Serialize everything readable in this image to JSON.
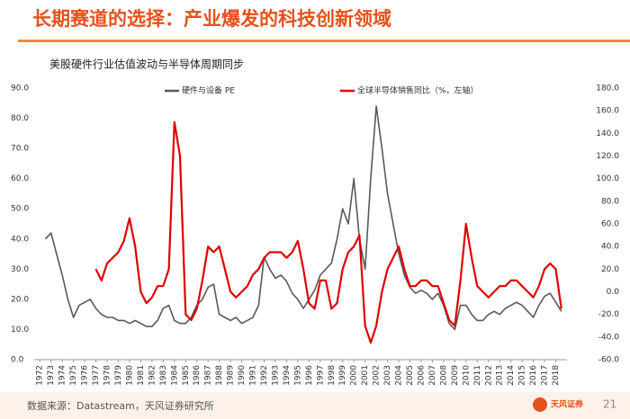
{
  "header": {
    "title": "长期赛道的选择：产业爆发的科技创新领域"
  },
  "footer": {
    "source": "数据来源：Datastream，天风证券研究所",
    "page": "21",
    "logo": "天风证券"
  },
  "chart_data": {
    "type": "line",
    "title": "美股硬件行业估值波动与半导体周期同步",
    "xlim": [
      1971.5,
      2019
    ],
    "xticks": [
      1972,
      1973,
      1974,
      1975,
      1976,
      1977,
      1978,
      1979,
      1980,
      1981,
      1982,
      1983,
      1984,
      1985,
      1986,
      1987,
      1988,
      1989,
      1990,
      1991,
      1992,
      1993,
      1994,
      1995,
      1996,
      1997,
      1998,
      1999,
      2000,
      2001,
      2002,
      2003,
      2004,
      2005,
      2006,
      2007,
      2008,
      2009,
      2010,
      2011,
      2012,
      2013,
      2014,
      2015,
      2016,
      2017,
      2018
    ],
    "ylim": [
      0,
      90
    ],
    "yticks": [
      {
        "value": 0,
        "label": "0.0"
      },
      {
        "value": 10,
        "label": "10.0"
      },
      {
        "value": 20,
        "label": "20.0"
      },
      {
        "value": 30,
        "label": "30.0"
      },
      {
        "value": 40,
        "label": "40.0"
      },
      {
        "value": 50,
        "label": "50.0"
      },
      {
        "value": 60,
        "label": "60.0"
      },
      {
        "value": 70,
        "label": "70.0"
      },
      {
        "value": 80,
        "label": "80.0"
      },
      {
        "value": 90,
        "label": "90.0"
      }
    ],
    "y2lim": [
      -60,
      180
    ],
    "y2ticks": [
      {
        "value": -60,
        "label": "-60.0"
      },
      {
        "value": -40,
        "label": "-40.0"
      },
      {
        "value": -20,
        "label": "-20.0"
      },
      {
        "value": 0,
        "label": "0.0"
      },
      {
        "value": 20,
        "label": "20.0"
      },
      {
        "value": 40,
        "label": "40.0"
      },
      {
        "value": 60,
        "label": "60.0"
      },
      {
        "value": 80,
        "label": "80.0"
      },
      {
        "value": 100,
        "label": "100.0"
      },
      {
        "value": 120,
        "label": "120.0"
      },
      {
        "value": 140,
        "label": "140.0"
      },
      {
        "value": 160,
        "label": "160.0"
      },
      {
        "value": 180,
        "label": "180.0"
      }
    ],
    "series": [
      {
        "name": "硬件与设备 PE",
        "color": "#595959",
        "x": [
          1972.5,
          1973,
          1973.5,
          1974,
          1974.5,
          1975,
          1975.5,
          1976,
          1976.5,
          1977,
          1977.5,
          1978,
          1978.5,
          1979,
          1979.5,
          1980,
          1980.5,
          1981,
          1981.5,
          1982,
          1982.5,
          1983,
          1983.5,
          1984,
          1984.5,
          1985,
          1985.5,
          1986,
          1986.5,
          1987,
          1987.5,
          1988,
          1988.5,
          1989,
          1989.5,
          1990,
          1990.5,
          1991,
          1991.5,
          1992,
          1992.5,
          1993,
          1993.5,
          1994,
          1994.5,
          1995,
          1995.5,
          1996,
          1996.5,
          1997,
          1997.5,
          1998,
          1998.5,
          1999,
          1999.5,
          2000,
          2000.5,
          2001,
          2001.5,
          2002,
          2002.5,
          2003,
          2003.5,
          2004,
          2004.5,
          2005,
          2005.5,
          2006,
          2006.5,
          2007,
          2007.5,
          2008,
          2008.5,
          2009,
          2009.5,
          2010,
          2010.5,
          2011,
          2011.5,
          2012,
          2012.5,
          2013,
          2013.5,
          2014,
          2014.5,
          2015,
          2015.5,
          2016,
          2016.5,
          2017,
          2017.5,
          2018,
          2018.5
        ],
        "values": [
          40,
          42,
          35,
          28,
          20,
          14,
          18,
          19,
          20,
          17,
          15,
          14,
          14,
          13,
          13,
          12,
          13,
          12,
          11,
          11,
          13,
          17,
          18,
          13,
          12,
          12,
          14,
          18,
          20,
          24,
          25,
          15,
          14,
          13,
          14,
          12,
          13,
          14,
          18,
          34,
          30,
          27,
          28,
          26,
          22,
          20,
          17,
          20,
          23,
          28,
          30,
          32,
          40,
          50,
          45,
          60,
          40,
          30,
          60,
          84,
          70,
          55,
          45,
          35,
          28,
          24,
          22,
          23,
          22,
          20,
          22,
          18,
          12,
          10,
          18,
          18,
          15,
          13,
          13,
          15,
          16,
          15,
          17,
          18,
          19,
          18,
          16,
          14,
          18,
          21,
          22,
          19,
          16
        ]
      },
      {
        "name": "全球半导体销售同比（%，左轴）",
        "color": "#e00000",
        "axis": "y2",
        "x": [
          1977,
          1977.5,
          1978,
          1978.5,
          1979,
          1979.5,
          1980,
          1980.5,
          1981,
          1981.5,
          1982,
          1982.5,
          1983,
          1983.5,
          1984,
          1984.5,
          1985,
          1985.5,
          1986,
          1986.5,
          1987,
          1987.5,
          1988,
          1988.5,
          1989,
          1989.5,
          1990,
          1990.5,
          1991,
          1991.5,
          1992,
          1992.5,
          1993,
          1993.5,
          1994,
          1994.5,
          1995,
          1995.5,
          1996,
          1996.5,
          1997,
          1997.5,
          1998,
          1998.5,
          1999,
          1999.5,
          2000,
          2000.5,
          2001,
          2001.5,
          2002,
          2002.5,
          2003,
          2003.5,
          2004,
          2004.5,
          2005,
          2005.5,
          2006,
          2006.5,
          2007,
          2007.5,
          2008,
          2008.5,
          2009,
          2009.5,
          2010,
          2010.5,
          2011,
          2011.5,
          2012,
          2012.5,
          2013,
          2013.5,
          2014,
          2014.5,
          2015,
          2015.5,
          2016,
          2016.5,
          2017,
          2017.5,
          2018,
          2018.5
        ],
        "values": [
          20,
          10,
          25,
          30,
          35,
          45,
          65,
          40,
          0,
          -10,
          -5,
          5,
          5,
          20,
          150,
          120,
          -20,
          -25,
          -15,
          10,
          40,
          35,
          40,
          20,
          0,
          -5,
          0,
          5,
          15,
          20,
          30,
          35,
          35,
          35,
          30,
          35,
          45,
          20,
          -10,
          -15,
          10,
          10,
          -15,
          -10,
          20,
          35,
          40,
          50,
          -30,
          -45,
          -30,
          0,
          20,
          30,
          40,
          20,
          5,
          5,
          10,
          10,
          5,
          5,
          -10,
          -25,
          -30,
          10,
          60,
          30,
          5,
          0,
          -5,
          0,
          5,
          5,
          10,
          10,
          5,
          0,
          -5,
          5,
          20,
          25,
          20,
          -15
        ]
      }
    ]
  }
}
